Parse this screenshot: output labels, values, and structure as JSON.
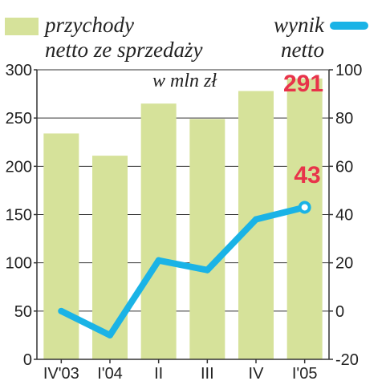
{
  "legend": {
    "bars_line1": "przychody",
    "bars_line2": "netto ze sprzedaży",
    "line_line1": "wynik",
    "line_line2": "netto"
  },
  "unit_label": "w mln zł",
  "callouts": {
    "bar_last": "291",
    "line_last": "43"
  },
  "colors": {
    "bar": "#d6e29a",
    "line": "#1ab3e6",
    "callout": "#e8334a",
    "axis": "#333333",
    "grid": "#333333"
  },
  "chart_data": {
    "type": "bar+line",
    "categories": [
      "IV'03",
      "I'04",
      "II",
      "III",
      "IV",
      "I'05"
    ],
    "series": [
      {
        "name": "przychody netto ze sprzedaży",
        "type": "bar",
        "axis": "left",
        "values": [
          234,
          211,
          265,
          249,
          278,
          291
        ]
      },
      {
        "name": "wynik netto",
        "type": "line",
        "axis": "right",
        "values": [
          0,
          -10,
          21,
          17,
          38,
          43
        ]
      }
    ],
    "y_left": {
      "min": 0,
      "max": 300,
      "ticks": [
        0,
        50,
        100,
        150,
        200,
        250,
        300
      ]
    },
    "y_right": {
      "min": -20,
      "max": 100,
      "ticks": [
        -20,
        0,
        20,
        40,
        60,
        80,
        100
      ]
    },
    "grid": true
  }
}
